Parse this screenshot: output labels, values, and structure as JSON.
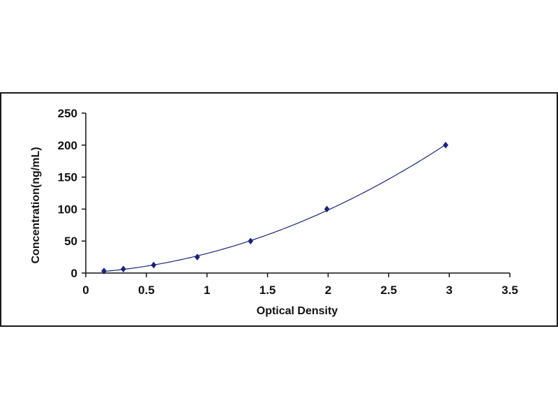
{
  "chart_data": {
    "type": "scatter",
    "title": "",
    "xlabel": "Optical Density",
    "ylabel": "Concentration(ng/mL)",
    "xlim": [
      0,
      3.5
    ],
    "ylim": [
      0,
      250
    ],
    "x_ticks": [
      0,
      0.5,
      1,
      1.5,
      2,
      2.5,
      3,
      3.5
    ],
    "x_tick_labels": [
      "0",
      "0.5",
      "1",
      "1.5",
      "2",
      "2.5",
      "3",
      "3.5"
    ],
    "y_ticks": [
      0,
      50,
      100,
      150,
      200,
      250
    ],
    "y_tick_labels": [
      "0",
      "50",
      "100",
      "150",
      "200",
      "250"
    ],
    "grid": false,
    "legend": "none",
    "series": [
      {
        "x": [
          0.15,
          0.31,
          0.56,
          0.92,
          1.36,
          1.99,
          2.97
        ],
        "y": [
          3.125,
          6.25,
          12.5,
          25,
          50,
          100,
          200
        ],
        "marker": "diamond",
        "color": "#1a237e",
        "trendline": "polynomial"
      }
    ],
    "colors": {
      "marker": "#1a237e",
      "curve": "#1a237e",
      "axis": "#111111",
      "frame": "#1a1a1a"
    }
  }
}
